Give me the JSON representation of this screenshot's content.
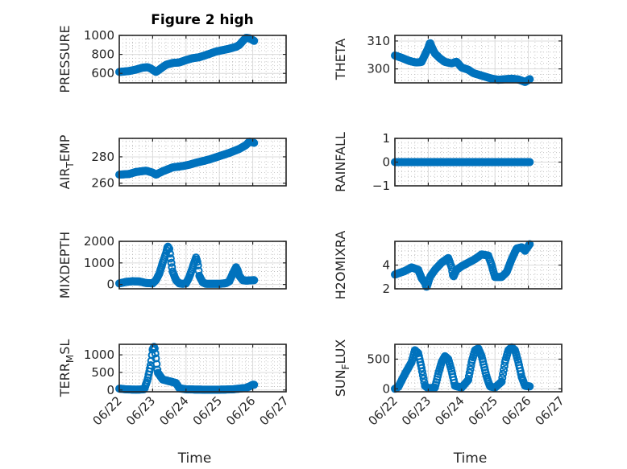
{
  "figure": {
    "title": "Figure 2 high"
  },
  "colors": {
    "marker": "#0072BD",
    "axes": "#262626",
    "grid": "#dcdcdc",
    "background": "#ffffff"
  },
  "chart_data": [
    {
      "type": "scatter",
      "ylabel": "PRESSURE",
      "xlabel": "",
      "title": "Figure 2 high",
      "ylim": [
        500,
        1000
      ],
      "yticks": [
        600,
        800,
        1000
      ],
      "xlim": [
        0,
        5
      ],
      "grid": true,
      "knots": [
        [
          0,
          615
        ],
        [
          0.3,
          625
        ],
        [
          0.5,
          640
        ],
        [
          0.7,
          660
        ],
        [
          0.85,
          665
        ],
        [
          0.95,
          650
        ],
        [
          1.1,
          615
        ],
        [
          1.2,
          640
        ],
        [
          1.4,
          690
        ],
        [
          1.6,
          710
        ],
        [
          1.8,
          715
        ],
        [
          2.0,
          740
        ],
        [
          2.2,
          760
        ],
        [
          2.4,
          770
        ],
        [
          2.7,
          805
        ],
        [
          2.9,
          830
        ],
        [
          3.1,
          845
        ],
        [
          3.3,
          860
        ],
        [
          3.5,
          880
        ],
        [
          3.6,
          900
        ],
        [
          3.7,
          940
        ],
        [
          3.8,
          975
        ],
        [
          3.9,
          970
        ],
        [
          4.0,
          950
        ],
        [
          4.05,
          940
        ]
      ]
    },
    {
      "type": "scatter",
      "ylabel": "THETA",
      "xlabel": "",
      "ylim": [
        295,
        312
      ],
      "yticks": [
        300,
        310
      ],
      "xlim": [
        0,
        5
      ],
      "grid": true,
      "knots": [
        [
          0,
          304.8
        ],
        [
          0.2,
          304
        ],
        [
          0.4,
          303
        ],
        [
          0.55,
          302.5
        ],
        [
          0.65,
          302.3
        ],
        [
          0.8,
          302.5
        ],
        [
          0.9,
          305
        ],
        [
          1.0,
          307.5
        ],
        [
          1.05,
          309.5
        ],
        [
          1.1,
          308
        ],
        [
          1.2,
          305.5
        ],
        [
          1.35,
          303.8
        ],
        [
          1.5,
          302.5
        ],
        [
          1.7,
          302
        ],
        [
          1.85,
          302.6
        ],
        [
          2.0,
          300.5
        ],
        [
          2.2,
          299.7
        ],
        [
          2.35,
          298.5
        ],
        [
          2.6,
          297.6
        ],
        [
          2.9,
          296.5
        ],
        [
          3.1,
          296.1
        ],
        [
          3.3,
          296.3
        ],
        [
          3.5,
          296.5
        ],
        [
          3.7,
          296.2
        ],
        [
          3.8,
          295.8
        ],
        [
          3.9,
          295.3
        ],
        [
          4.0,
          296
        ],
        [
          4.05,
          296.4
        ]
      ]
    },
    {
      "type": "scatter",
      "ylabel": "AIR_TEMP",
      "xlabel": "",
      "ylim": [
        258,
        294
      ],
      "yticks": [
        260,
        280
      ],
      "xlim": [
        0,
        5
      ],
      "grid": true,
      "knots": [
        [
          0,
          266.5
        ],
        [
          0.3,
          267
        ],
        [
          0.5,
          268.5
        ],
        [
          0.8,
          269.5
        ],
        [
          1.0,
          268
        ],
        [
          1.1,
          266.5
        ],
        [
          1.3,
          269
        ],
        [
          1.6,
          272
        ],
        [
          1.9,
          273
        ],
        [
          2.1,
          274
        ],
        [
          2.3,
          275.5
        ],
        [
          2.7,
          278
        ],
        [
          3.0,
          280.5
        ],
        [
          3.3,
          283
        ],
        [
          3.6,
          286
        ],
        [
          3.8,
          289
        ],
        [
          3.9,
          291.5
        ],
        [
          4.0,
          291
        ],
        [
          4.05,
          290.5
        ]
      ]
    },
    {
      "type": "scatter",
      "ylabel": "RAINFALL",
      "xlabel": "",
      "ylim": [
        -1,
        1
      ],
      "yticks": [
        -1,
        0,
        1
      ],
      "xlim": [
        0,
        5
      ],
      "grid": true,
      "knots": [
        [
          0,
          0
        ],
        [
          4.05,
          0
        ]
      ]
    },
    {
      "type": "scatter",
      "ylabel": "MIXDEPTH",
      "xlabel": "",
      "ylim": [
        -200,
        2000
      ],
      "yticks": [
        0,
        1000,
        2000
      ],
      "xlim": [
        0,
        5
      ],
      "grid": true,
      "knots": [
        [
          0,
          50
        ],
        [
          0.2,
          120
        ],
        [
          0.4,
          150
        ],
        [
          0.6,
          140
        ],
        [
          0.8,
          70
        ],
        [
          1.0,
          50
        ],
        [
          1.1,
          200
        ],
        [
          1.2,
          500
        ],
        [
          1.3,
          1000
        ],
        [
          1.4,
          1450
        ],
        [
          1.45,
          1780
        ],
        [
          1.5,
          1650
        ],
        [
          1.55,
          1100
        ],
        [
          1.6,
          600
        ],
        [
          1.7,
          200
        ],
        [
          1.8,
          50
        ],
        [
          1.9,
          30
        ],
        [
          2.0,
          50
        ],
        [
          2.1,
          350
        ],
        [
          2.2,
          800
        ],
        [
          2.3,
          1250
        ],
        [
          2.35,
          1000
        ],
        [
          2.4,
          400
        ],
        [
          2.5,
          100
        ],
        [
          2.6,
          30
        ],
        [
          3.0,
          30
        ],
        [
          3.2,
          60
        ],
        [
          3.3,
          150
        ],
        [
          3.4,
          500
        ],
        [
          3.5,
          800
        ],
        [
          3.55,
          650
        ],
        [
          3.6,
          400
        ],
        [
          3.7,
          200
        ],
        [
          3.8,
          180
        ],
        [
          4.05,
          200
        ]
      ]
    },
    {
      "type": "scatter",
      "ylabel": "H2OMIXRA",
      "xlabel": "",
      "ylim": [
        2,
        6
      ],
      "yticks": [
        2,
        4
      ],
      "xlim": [
        0,
        5
      ],
      "grid": true,
      "knots": [
        [
          0,
          3.2
        ],
        [
          0.3,
          3.5
        ],
        [
          0.5,
          3.8
        ],
        [
          0.7,
          3.6
        ],
        [
          0.8,
          2.9
        ],
        [
          0.9,
          2.5
        ],
        [
          0.95,
          2.1
        ],
        [
          1.05,
          3.0
        ],
        [
          1.2,
          3.6
        ],
        [
          1.4,
          4.2
        ],
        [
          1.6,
          4.6
        ],
        [
          1.7,
          3.8
        ],
        [
          1.75,
          3.0
        ],
        [
          1.85,
          3.6
        ],
        [
          2.0,
          3.9
        ],
        [
          2.2,
          4.2
        ],
        [
          2.4,
          4.5
        ],
        [
          2.6,
          4.9
        ],
        [
          2.8,
          4.8
        ],
        [
          2.9,
          4.0
        ],
        [
          3.0,
          3.0
        ],
        [
          3.2,
          3.0
        ],
        [
          3.35,
          3.4
        ],
        [
          3.5,
          4.5
        ],
        [
          3.65,
          5.4
        ],
        [
          3.8,
          5.5
        ],
        [
          3.9,
          5.2
        ],
        [
          4.0,
          5.6
        ],
        [
          4.05,
          5.8
        ]
      ]
    },
    {
      "type": "scatter",
      "ylabel": "TERR_MSL",
      "xlabel": "Time",
      "ylim": [
        -50,
        1300
      ],
      "yticks": [
        0,
        500,
        1000
      ],
      "xlim": [
        0,
        5
      ],
      "grid": true,
      "xticks": [
        0,
        1,
        2,
        3,
        4,
        5
      ],
      "xticklabels": [
        "06/22",
        "06/23",
        "06/24",
        "06/25",
        "06/26",
        "06/27"
      ],
      "knots": [
        [
          0,
          40
        ],
        [
          0.2,
          20
        ],
        [
          0.5,
          10
        ],
        [
          0.75,
          20
        ],
        [
          0.85,
          300
        ],
        [
          0.95,
          750
        ],
        [
          1.0,
          1150
        ],
        [
          1.05,
          1250
        ],
        [
          1.1,
          900
        ],
        [
          1.15,
          500
        ],
        [
          1.3,
          300
        ],
        [
          1.5,
          250
        ],
        [
          1.7,
          200
        ],
        [
          1.8,
          50
        ],
        [
          2.0,
          20
        ],
        [
          2.5,
          10
        ],
        [
          3.0,
          10
        ],
        [
          3.4,
          20
        ],
        [
          3.6,
          40
        ],
        [
          3.8,
          60
        ],
        [
          3.9,
          100
        ],
        [
          4.0,
          150
        ],
        [
          4.05,
          150
        ]
      ]
    },
    {
      "type": "scatter",
      "ylabel": "SUN_FLUX",
      "xlabel": "Time",
      "ylim": [
        -50,
        750
      ],
      "yticks": [
        0,
        500
      ],
      "xlim": [
        0,
        5
      ],
      "grid": true,
      "xticks": [
        0,
        1,
        2,
        3,
        4,
        5
      ],
      "xticklabels": [
        "06/22",
        "06/23",
        "06/24",
        "06/25",
        "06/26",
        "06/27"
      ],
      "knots": [
        [
          0,
          0
        ],
        [
          0.1,
          30
        ],
        [
          0.3,
          250
        ],
        [
          0.5,
          450
        ],
        [
          0.6,
          650
        ],
        [
          0.7,
          600
        ],
        [
          0.8,
          350
        ],
        [
          0.9,
          50
        ],
        [
          1.0,
          10
        ],
        [
          1.2,
          20
        ],
        [
          1.3,
          250
        ],
        [
          1.4,
          450
        ],
        [
          1.5,
          550
        ],
        [
          1.6,
          500
        ],
        [
          1.7,
          300
        ],
        [
          1.8,
          50
        ],
        [
          2.0,
          20
        ],
        [
          2.2,
          150
        ],
        [
          2.3,
          450
        ],
        [
          2.4,
          650
        ],
        [
          2.5,
          680
        ],
        [
          2.6,
          550
        ],
        [
          2.75,
          200
        ],
        [
          2.85,
          40
        ],
        [
          3.0,
          20
        ],
        [
          3.2,
          120
        ],
        [
          3.3,
          450
        ],
        [
          3.4,
          650
        ],
        [
          3.5,
          700
        ],
        [
          3.6,
          650
        ],
        [
          3.7,
          450
        ],
        [
          3.8,
          200
        ],
        [
          3.9,
          50
        ],
        [
          4.05,
          40
        ]
      ]
    }
  ]
}
